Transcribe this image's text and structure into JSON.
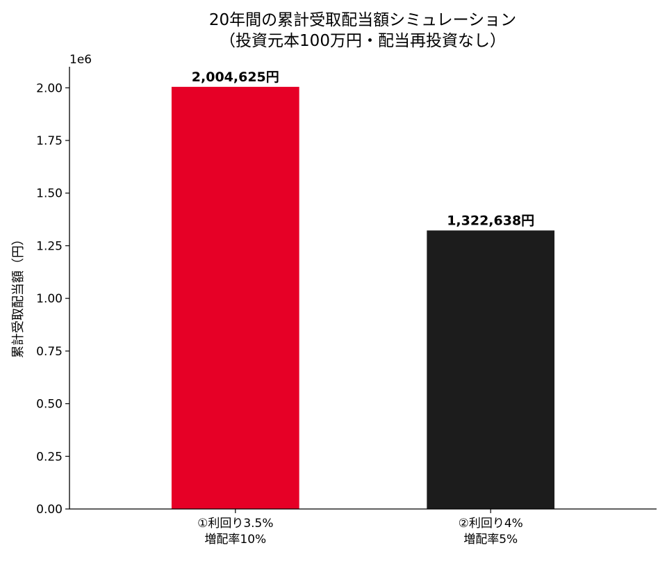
{
  "chart_data": {
    "type": "bar",
    "title": "20年間の累計受取配当額シミュレーション",
    "subtitle": "（投資元本100万円・配当再投資なし）",
    "xlabel": "",
    "ylabel": "累計受取配当額（円）",
    "y_offset_label": "1e6",
    "y_scale": 1000000,
    "ylim": [
      0,
      2100000
    ],
    "yticks": [
      0,
      250000,
      500000,
      750000,
      1000000,
      1250000,
      1500000,
      1750000,
      2000000
    ],
    "ytick_labels": [
      "0.00",
      "0.25",
      "0.50",
      "0.75",
      "1.00",
      "1.25",
      "1.50",
      "1.75",
      "2.00"
    ],
    "categories": [
      [
        "①利回り3.5%",
        "増配率10%"
      ],
      [
        "②利回り4%",
        "増配率5%"
      ]
    ],
    "values": [
      2004625,
      1322638
    ],
    "data_labels": [
      "2,004,625円",
      "1,322,638円"
    ],
    "colors": [
      "#e60026",
      "#1c1c1c"
    ],
    "grid": false,
    "legend": "none"
  }
}
